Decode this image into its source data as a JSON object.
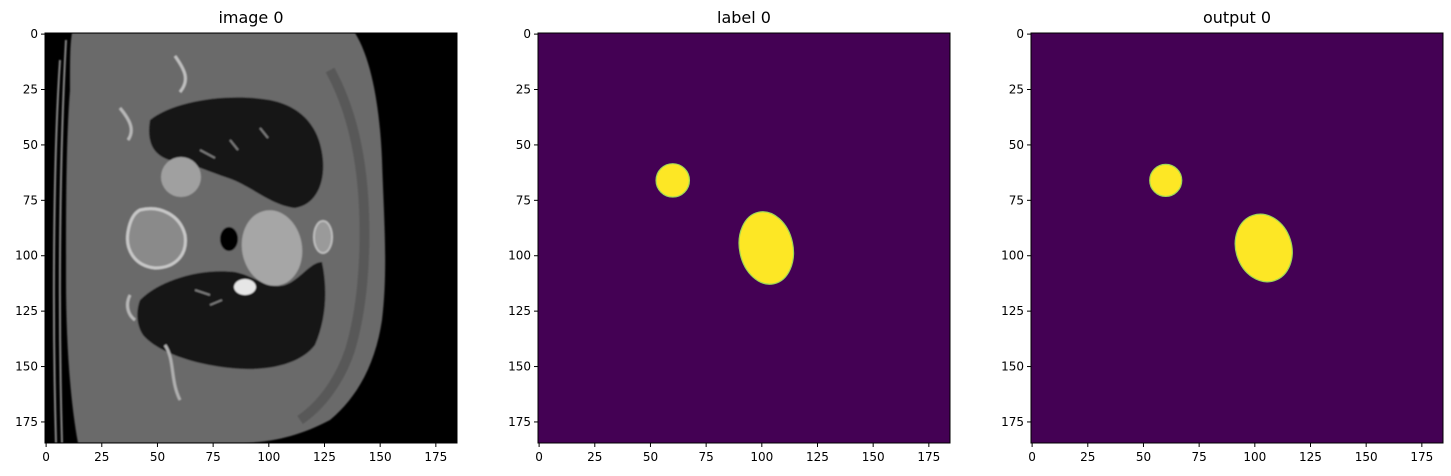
{
  "figure": {
    "panels": [
      {
        "title": "image 0",
        "kind": "ct-scan",
        "xticks": [
          "0",
          "25",
          "50",
          "75",
          "100",
          "125",
          "150",
          "175"
        ],
        "yticks": [
          "0",
          "25",
          "50",
          "75",
          "100",
          "125",
          "150",
          "175"
        ]
      },
      {
        "title": "label 0",
        "kind": "segmentation-mask",
        "xticks": [
          "0",
          "25",
          "50",
          "75",
          "100",
          "125",
          "150",
          "175"
        ],
        "yticks": [
          "0",
          "25",
          "50",
          "75",
          "100",
          "125",
          "150",
          "175"
        ]
      },
      {
        "title": "output 0",
        "kind": "segmentation-mask",
        "xticks": [
          "0",
          "25",
          "50",
          "75",
          "100",
          "125",
          "150",
          "175"
        ],
        "yticks": [
          "0",
          "25",
          "50",
          "75",
          "100",
          "125",
          "150",
          "175"
        ]
      }
    ],
    "axis_range": [
      0,
      184
    ],
    "tick_values": [
      0,
      25,
      50,
      75,
      100,
      125,
      150,
      175
    ],
    "colors": {
      "mask_background": "#440154",
      "mask_foreground": "#fde725",
      "mask_edge": "#9fd855",
      "ct_background": "#000000",
      "ct_body": "#6e6e6e",
      "ct_lung": "#161616",
      "ct_vessel": "#9a9a9a",
      "ct_bone": "#d0d0d0"
    },
    "label_blobs": [
      {
        "shape": "circle",
        "cx": 60,
        "cy": 66,
        "r": 7.5
      },
      {
        "shape": "ellipse",
        "cx": 102,
        "cy": 96.5,
        "rx": 12,
        "ry": 16.5,
        "rotate": -12
      }
    ],
    "output_blobs": [
      {
        "shape": "circle",
        "cx": 60,
        "cy": 66,
        "r": 7.2
      },
      {
        "shape": "ellipse",
        "cx": 104,
        "cy": 96.5,
        "rx": 12.5,
        "ry": 15.5,
        "rotate": -18
      }
    ]
  }
}
